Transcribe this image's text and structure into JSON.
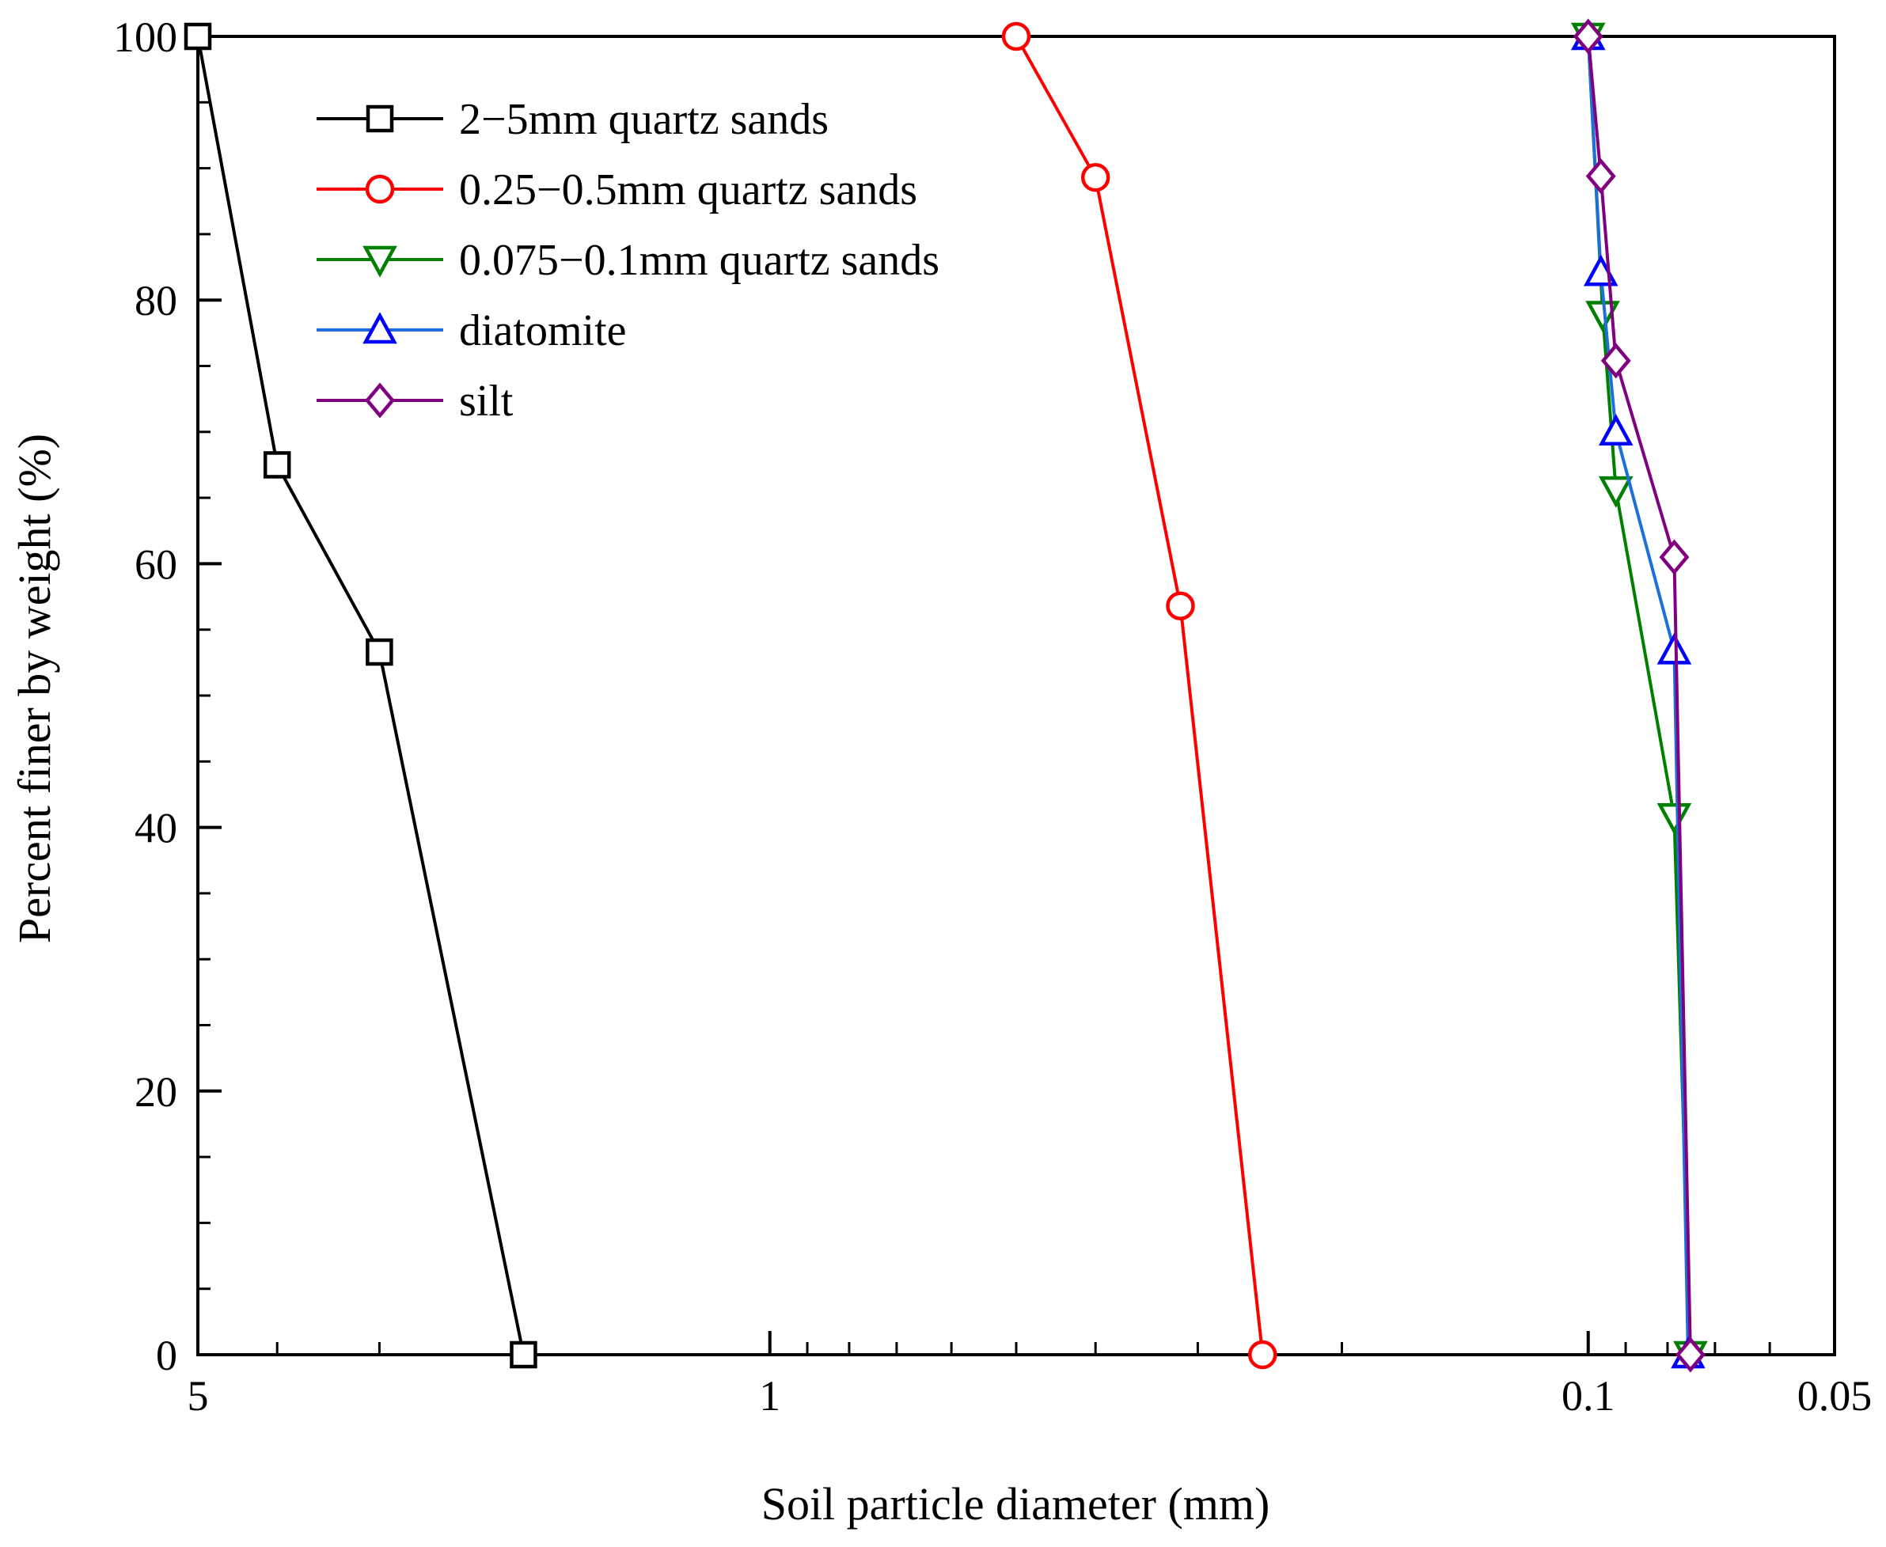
{
  "chart_data": {
    "type": "line",
    "title": "",
    "xlabel": "Soil particle diameter (mm)",
    "ylabel": "Percent finer by weight (%)",
    "x_scale": "log",
    "x_reversed": true,
    "xlim": [
      5,
      0.05
    ],
    "ylim": [
      0,
      100
    ],
    "x_ticks": [
      5,
      1,
      0.1,
      0.05
    ],
    "x_tick_labels": [
      "5",
      "1",
      "0.1",
      "0.05"
    ],
    "y_ticks": [
      0,
      20,
      40,
      60,
      80,
      100
    ],
    "y_tick_labels": [
      "0",
      "20",
      "40",
      "60",
      "80",
      "100"
    ],
    "legend_position": "top-left",
    "series": [
      {
        "name": "2−5mm quartz sands",
        "color": "#000000",
        "marker": "square",
        "x": [
          5,
          4,
          3,
          2
        ],
        "y": [
          100,
          67.5,
          53.3,
          0
        ]
      },
      {
        "name": "0.25−0.5mm quartz sands",
        "color": "#ff0000",
        "marker": "circle",
        "x": [
          0.5,
          0.4,
          0.315,
          0.25
        ],
        "y": [
          100,
          89.3,
          56.8,
          0
        ]
      },
      {
        "name": "0.075−0.1mm quartz sands",
        "color": "#008000",
        "marker": "triangle-down",
        "x": [
          0.1,
          0.096,
          0.0925,
          0.0785,
          0.075
        ],
        "y": [
          100,
          78.9,
          65.6,
          40.8,
          0
        ]
      },
      {
        "name": "diatomite",
        "color": "#1e6fd9",
        "marker_color": "#0000ff",
        "marker": "triangle-up",
        "x": [
          0.1,
          0.0965,
          0.0925,
          0.0785,
          0.0755
        ],
        "y": [
          100,
          82.1,
          70.0,
          53.4,
          0
        ]
      },
      {
        "name": "silt",
        "color": "#800080",
        "marker": "diamond",
        "x": [
          0.1,
          0.0965,
          0.0925,
          0.0785,
          0.075
        ],
        "y": [
          100,
          89.4,
          75.4,
          60.5,
          0
        ]
      }
    ]
  }
}
